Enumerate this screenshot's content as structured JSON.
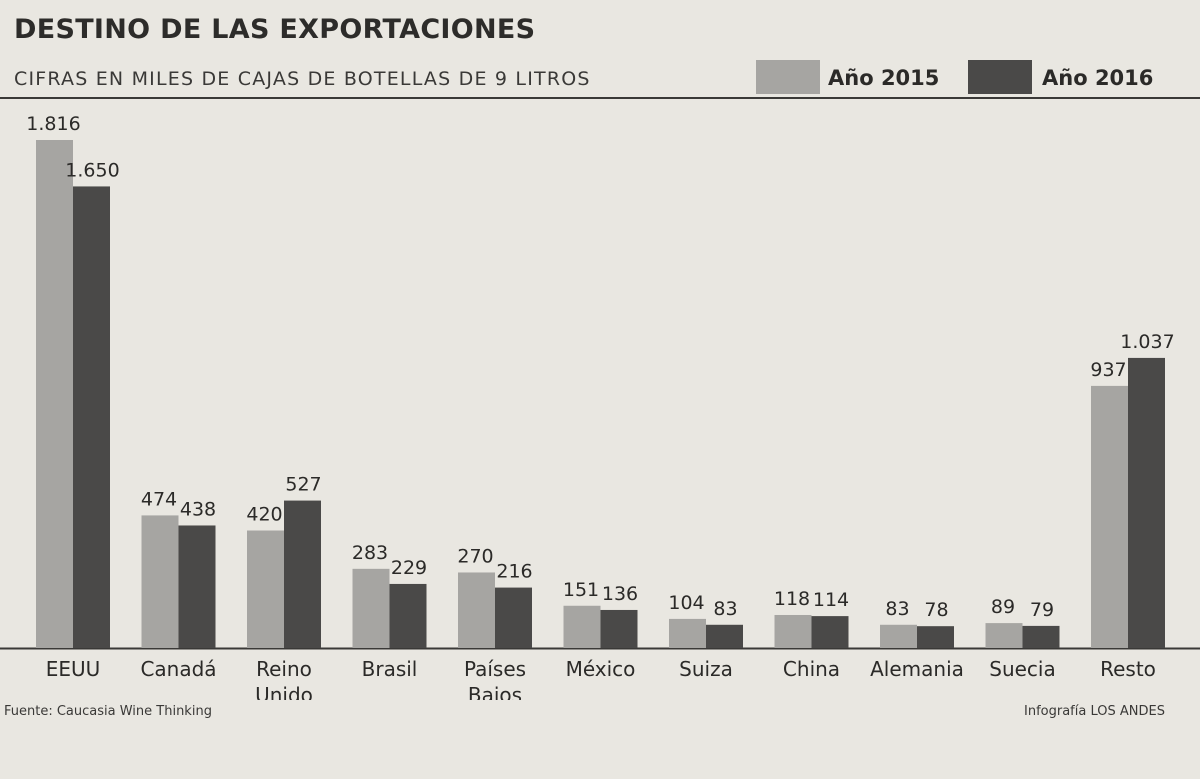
{
  "title": "DESTINO DE LAS EXPORTACIONES",
  "subtitle": "CIFRAS EN MILES DE CAJAS DE BOTELLAS DE 9 LITROS",
  "legend": {
    "label_2015": "Año 2015",
    "label_2016": "Año 2016"
  },
  "colors": {
    "s2015": "#a6a5a2",
    "s2016": "#4a4948",
    "background": "#e9e7e1"
  },
  "footer": {
    "source": "Fuente: Caucasia Wine Thinking",
    "credit": "Infografía LOS ANDES"
  },
  "chart_data": {
    "type": "bar",
    "title": "DESTINO DE LAS EXPORTACIONES",
    "categories": [
      [
        "EEUU"
      ],
      [
        "Canadá"
      ],
      [
        "Reino",
        "Unido"
      ],
      [
        "Brasil"
      ],
      [
        "Países",
        "Bajos"
      ],
      [
        "México"
      ],
      [
        "Suiza"
      ],
      [
        "China"
      ],
      [
        "Alemania"
      ],
      [
        "Suecia"
      ],
      [
        "Resto"
      ]
    ],
    "series": [
      {
        "name": "Año 2015",
        "values": [
          1816,
          474,
          420,
          283,
          270,
          151,
          104,
          118,
          83,
          89,
          937
        ],
        "labels": [
          "1.816",
          "474",
          "420",
          "283",
          "270",
          "151",
          "104",
          "118",
          "83",
          "89",
          "937"
        ]
      },
      {
        "name": "Año 2016",
        "values": [
          1650,
          438,
          527,
          229,
          216,
          136,
          83,
          114,
          78,
          79,
          1037
        ],
        "labels": [
          "1.650",
          "438",
          "527",
          "229",
          "216",
          "136",
          "83",
          "114",
          "78",
          "79",
          "1.037"
        ]
      }
    ],
    "ylim": [
      0,
      1816
    ],
    "grid": false,
    "legend_position": "top-right"
  }
}
